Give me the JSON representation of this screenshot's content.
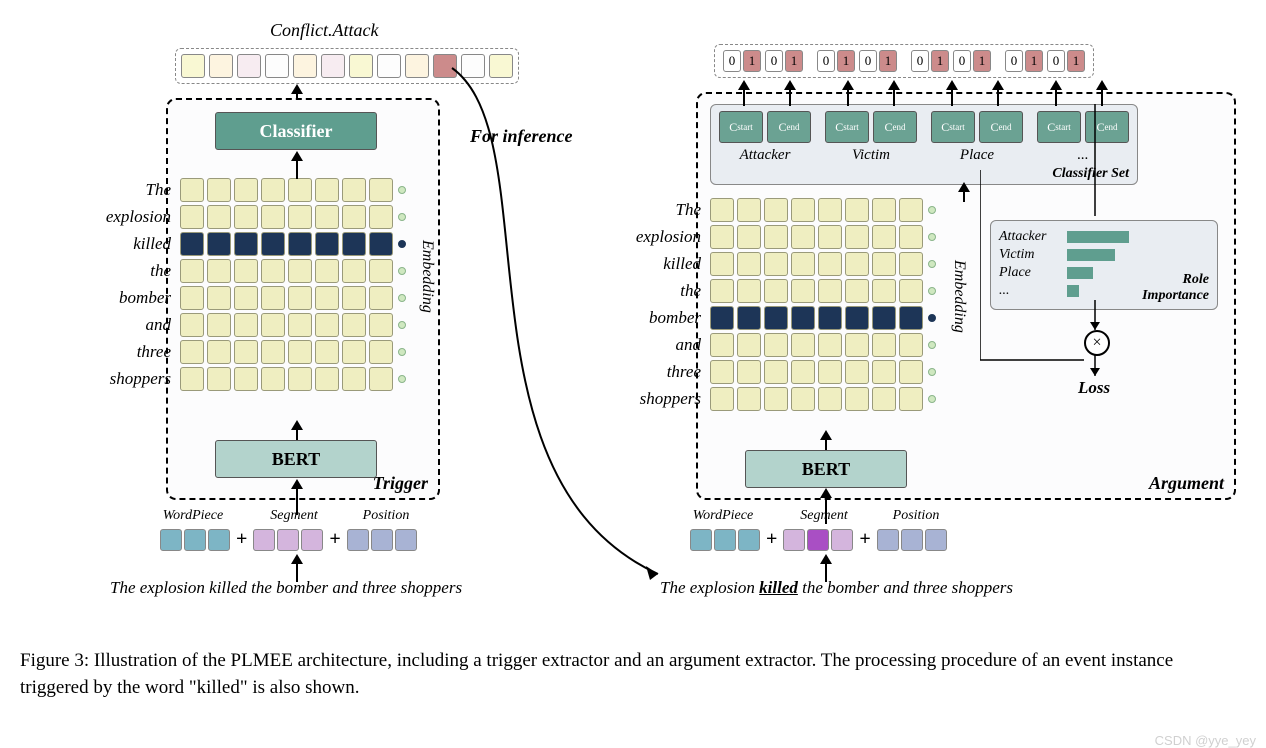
{
  "title_top": "Conflict.Attack",
  "for_inference": "For inference",
  "trigger_label": "Trigger",
  "argument_label": "Argument",
  "classifier_label": "Classifier",
  "bert_label": "BERT",
  "embedding_label": "Embedding",
  "words": [
    "The",
    "explosion",
    "killed",
    "the",
    "bomber",
    "and",
    "three",
    "shoppers"
  ],
  "grid_cols": 8,
  "trigger_highlight_row": 2,
  "argument_highlight_row": 4,
  "colors": {
    "cell_default": "#efeec1",
    "cell_highlight": "#1d3557",
    "cell_border": "#9a9a7a",
    "dot_default": "#cfe8c0",
    "dot_highlight": "#1d3557",
    "classifier_bg": "#5f9e8f",
    "bert_bg": "#b3d3cc",
    "panel_bg": "#fcfcfd",
    "classifier_set_bg": "#e9edf2",
    "cs_box_bg": "#6ba293",
    "role_imp_bg": "#e9edf2",
    "ri_bar_color": "#5f9e8f",
    "wordpiece": "#7db5c5",
    "segment": "#d4b5dd",
    "segment_highlight": "#a94fc4",
    "position": "#a8b3d4",
    "bin0_bg": "#ffffff",
    "bin1_bg": "#cc8b8b",
    "out_colors": [
      "#f9f8d3",
      "#fdf4e0",
      "#f7ecf1",
      "#fdfdfd",
      "#fdf4e0",
      "#f7ecf1",
      "#f9f8d3",
      "#fdfdfd",
      "#fdf4e0",
      "#cc8b8b",
      "#fdfdfd",
      "#f9f8d3"
    ]
  },
  "input_labels": {
    "wordpiece": "WordPiece",
    "segment": "Segment",
    "position": "Position"
  },
  "sentence_plain": "The explosion killed the bomber and three shoppers",
  "sentence_bold_word": "killed",
  "classifier_set": {
    "label": "Classifier Set",
    "roles": [
      "Attacker",
      "Victim",
      "Place",
      "..."
    ],
    "box_labels": [
      "Cstart",
      "Cend"
    ]
  },
  "binary_output": {
    "groups": 4,
    "pairs_per_group": 2,
    "pair": [
      "0",
      "1"
    ]
  },
  "role_importance": {
    "label": "Role\nImportance",
    "rows": [
      {
        "label": "Attacker",
        "width": 62
      },
      {
        "label": "Victim",
        "width": 48
      },
      {
        "label": "Place",
        "width": 26
      },
      {
        "label": "...",
        "width": 12
      }
    ]
  },
  "loss_label": "Loss",
  "caption": "Figure 3:  Illustration of the PLMEE architecture, including a trigger extractor and an argument extractor.  The processing procedure of an event instance triggered by the word \"killed\" is also shown.",
  "watermark": "CSDN @yye_yey"
}
